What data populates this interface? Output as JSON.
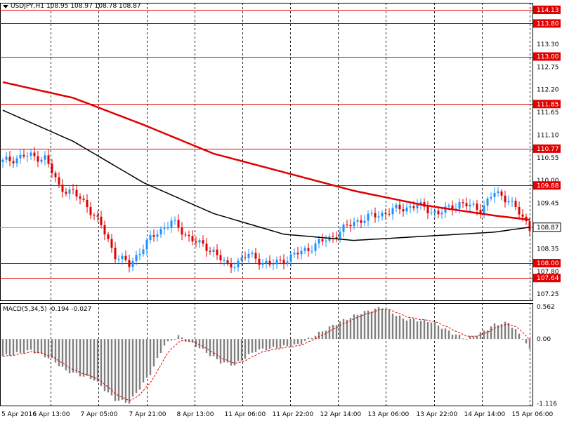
{
  "header": {
    "symbol": "USDJPY,H1",
    "ohlc": "108.95 108.97 108.78 108.87"
  },
  "macd_header": {
    "label": "MACD(5,34,5) -0.194 -0.027"
  },
  "colors": {
    "bull": "#1e90ff",
    "bear": "#e00000",
    "ma_red": "#e00000",
    "ma_black": "#000000",
    "level_line": "#e00000",
    "macd_hist": "#808080",
    "macd_signal": "#e00000",
    "grid": "#000000"
  },
  "chart_data": [
    {
      "type": "candlestick",
      "symbol": "USDJPY",
      "timeframe": "H1",
      "title": "USDJPY,H1",
      "ylim": [
        107.1,
        114.3
      ],
      "y_ticks": [
        107.25,
        107.8,
        108.35,
        108.87,
        109.45,
        110.0,
        110.55,
        111.1,
        111.65,
        112.2,
        112.75,
        113.3
      ],
      "x_ticks": [
        "5 Apr 2016",
        "6 Apr 13:00",
        "7 Apr 05:00",
        "7 Apr 21:00",
        "8 Apr 13:00",
        "11 Apr 06:00",
        "11 Apr 22:00",
        "12 Apr 14:00",
        "13 Apr 06:00",
        "13 Apr 22:00",
        "14 Apr 14:00",
        "15 Apr 06:00"
      ],
      "grid": "vertical dashed",
      "current_price": 108.87,
      "levels": [
        114.13,
        113.8,
        113.0,
        111.85,
        110.77,
        109.88,
        108.0,
        107.64
      ],
      "close_path": [
        [
          0,
          110.45
        ],
        [
          6,
          110.6
        ],
        [
          12,
          110.55
        ],
        [
          16,
          109.85
        ],
        [
          20,
          109.7
        ],
        [
          24,
          109.4
        ],
        [
          28,
          108.9
        ],
        [
          32,
          108.2
        ],
        [
          36,
          107.95
        ],
        [
          40,
          108.4
        ],
        [
          44,
          108.75
        ],
        [
          48,
          109.0
        ],
        [
          52,
          108.7
        ],
        [
          56,
          108.45
        ],
        [
          60,
          108.3
        ],
        [
          64,
          107.9
        ],
        [
          70,
          108.2
        ],
        [
          76,
          107.95
        ],
        [
          82,
          108.15
        ],
        [
          88,
          108.4
        ],
        [
          94,
          108.65
        ],
        [
          100,
          109.0
        ],
        [
          106,
          109.15
        ],
        [
          112,
          109.3
        ],
        [
          118,
          109.4
        ],
        [
          124,
          109.2
        ],
        [
          130,
          109.45
        ],
        [
          136,
          109.3
        ],
        [
          140,
          109.7
        ],
        [
          144,
          109.55
        ],
        [
          147,
          109.2
        ],
        [
          150,
          108.87
        ]
      ],
      "ma_slow_red": [
        [
          0,
          112.38
        ],
        [
          20,
          112.0
        ],
        [
          40,
          111.35
        ],
        [
          60,
          110.65
        ],
        [
          80,
          110.2
        ],
        [
          100,
          109.75
        ],
        [
          120,
          109.4
        ],
        [
          140,
          109.15
        ],
        [
          150,
          109.05
        ]
      ],
      "ma_black": [
        [
          0,
          111.7
        ],
        [
          20,
          110.95
        ],
        [
          40,
          109.95
        ],
        [
          60,
          109.2
        ],
        [
          80,
          108.7
        ],
        [
          100,
          108.55
        ],
        [
          120,
          108.65
        ],
        [
          140,
          108.75
        ],
        [
          150,
          108.87
        ]
      ]
    },
    {
      "type": "bar",
      "title": "MACD(5,34,5)",
      "ylim": [
        -1.15,
        0.62
      ],
      "y_ticks": [
        0.562,
        0.0,
        -1.116
      ],
      "main_last": -0.194,
      "signal_last": -0.027,
      "hist_path": [
        [
          0,
          -0.3
        ],
        [
          8,
          -0.2
        ],
        [
          14,
          -0.35
        ],
        [
          18,
          -0.55
        ],
        [
          26,
          -0.7
        ],
        [
          32,
          -1.05
        ],
        [
          36,
          -1.1
        ],
        [
          42,
          -0.6
        ],
        [
          46,
          -0.1
        ],
        [
          50,
          0.05
        ],
        [
          56,
          -0.15
        ],
        [
          62,
          -0.4
        ],
        [
          66,
          -0.45
        ],
        [
          72,
          -0.2
        ],
        [
          78,
          -0.15
        ],
        [
          84,
          -0.1
        ],
        [
          90,
          0.1
        ],
        [
          96,
          0.3
        ],
        [
          102,
          0.45
        ],
        [
          108,
          0.55
        ],
        [
          114,
          0.35
        ],
        [
          122,
          0.3
        ],
        [
          128,
          0.1
        ],
        [
          132,
          0.0
        ],
        [
          136,
          0.1
        ],
        [
          140,
          0.25
        ],
        [
          144,
          0.28
        ],
        [
          148,
          0.02
        ],
        [
          150,
          -0.19
        ]
      ]
    }
  ]
}
